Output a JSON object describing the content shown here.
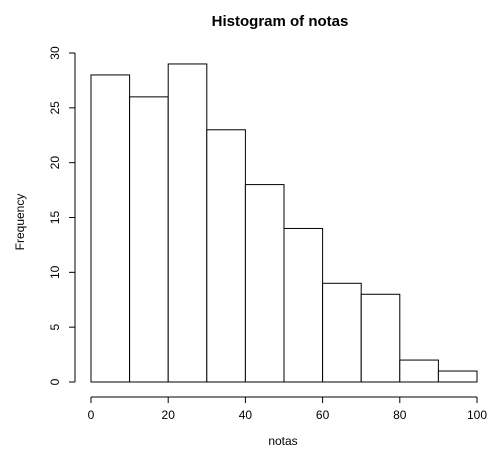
{
  "chart_data": {
    "type": "bar",
    "title": "Histogram of notas",
    "xlabel": "notas",
    "ylabel": "Frequency",
    "bins": [
      {
        "from": 0,
        "to": 10,
        "value": 28
      },
      {
        "from": 10,
        "to": 20,
        "value": 26
      },
      {
        "from": 20,
        "to": 30,
        "value": 29
      },
      {
        "from": 30,
        "to": 40,
        "value": 23
      },
      {
        "from": 40,
        "to": 50,
        "value": 18
      },
      {
        "from": 50,
        "to": 60,
        "value": 14
      },
      {
        "from": 60,
        "to": 70,
        "value": 9
      },
      {
        "from": 70,
        "to": 80,
        "value": 8
      },
      {
        "from": 80,
        "to": 90,
        "value": 2
      },
      {
        "from": 90,
        "to": 100,
        "value": 1
      }
    ],
    "xlim": [
      0,
      100
    ],
    "ylim": [
      0,
      30
    ],
    "x_ticks": [
      0,
      20,
      40,
      60,
      80,
      100
    ],
    "y_ticks": [
      0,
      5,
      10,
      15,
      20,
      25,
      30
    ],
    "x_tick_labels": [
      "0",
      "20",
      "40",
      "60",
      "80",
      "100"
    ],
    "y_tick_labels": [
      "0",
      "5",
      "10",
      "15",
      "20",
      "25",
      "30"
    ],
    "grid": false,
    "colors": {
      "bar_fill": "#ffffff",
      "bar_stroke": "#000000",
      "background": "#ffffff"
    }
  }
}
